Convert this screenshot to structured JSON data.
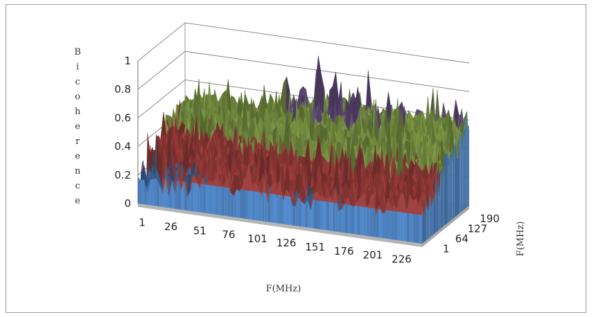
{
  "chart_data": {
    "type": "surface",
    "title": "",
    "zlabel": "Bicoherence",
    "xlabel": "F(MHz)",
    "ylabel": "F(MHz)",
    "zlim": [
      0,
      1
    ],
    "z_ticks": [
      "0",
      "0.2",
      "0.4",
      "0.6",
      "0.8",
      "1"
    ],
    "x_ticks": [
      "1",
      "26",
      "51",
      "76",
      "101",
      "126",
      "151",
      "176",
      "201",
      "226"
    ],
    "y_ticks": [
      "1",
      "64",
      "127",
      "190"
    ],
    "grid": true,
    "legend": "none",
    "band_colors": [
      "#4a7ebb",
      "#be4b48",
      "#98b954",
      "#7d60a0"
    ],
    "band_edges": [
      0,
      0.2,
      0.4,
      0.6,
      0.8
    ],
    "zones": [
      {
        "x": 10,
        "y": 40,
        "z": 0.14
      },
      {
        "x": 150,
        "y": 170,
        "z": 0.58
      },
      {
        "x": 126,
        "y": 120,
        "z": 0.62
      },
      {
        "x": 60,
        "y": 160,
        "z": 0.45
      },
      {
        "x": 200,
        "y": 130,
        "z": 0.42
      },
      {
        "x": 100,
        "y": 60,
        "z": 0.3
      },
      {
        "x": 226,
        "y": 30,
        "z": 0.25
      },
      {
        "x": 40,
        "y": 110,
        "z": 0.36
      },
      {
        "x": 176,
        "y": 200,
        "z": 0.55
      },
      {
        "x": 140,
        "y": 20,
        "z": 0.2
      }
    ],
    "peaks": [
      {
        "x": 126,
        "y": 160,
        "z": 0.93
      },
      {
        "x": 140,
        "y": 150,
        "z": 0.86
      },
      {
        "x": 110,
        "y": 170,
        "z": 0.8
      },
      {
        "x": 150,
        "y": 175,
        "z": 0.78
      },
      {
        "x": 176,
        "y": 150,
        "z": 0.72
      },
      {
        "x": 190,
        "y": 190,
        "z": 0.74
      },
      {
        "x": 90,
        "y": 200,
        "z": 0.7
      },
      {
        "x": 160,
        "y": 130,
        "z": 0.75
      }
    ]
  }
}
